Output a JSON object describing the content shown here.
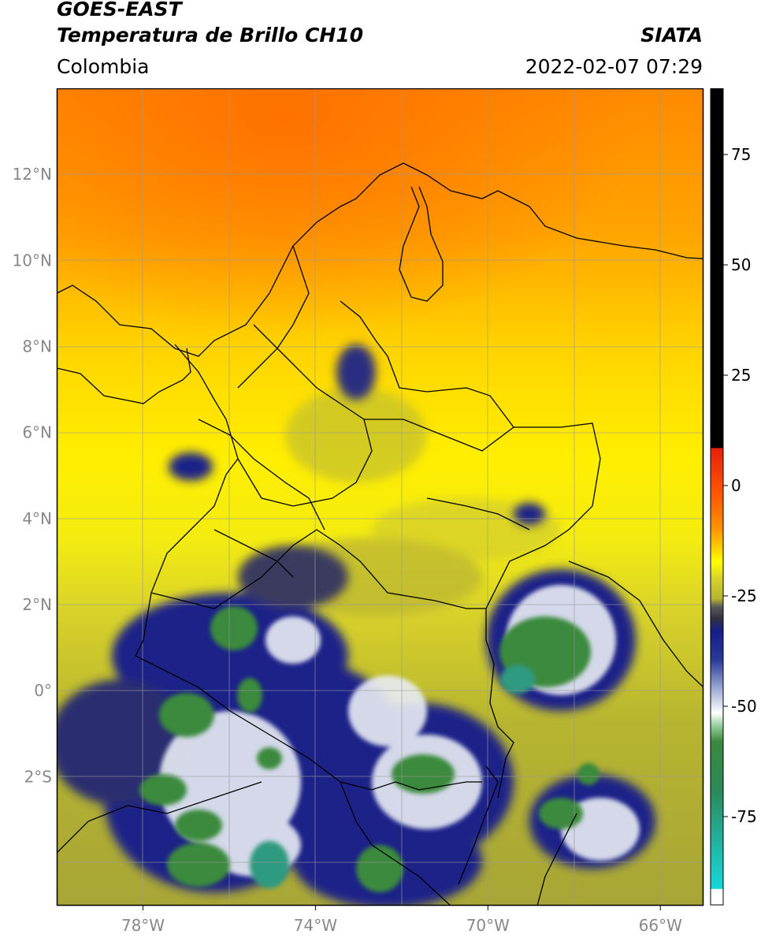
{
  "header": {
    "title_line1": "GOES-EAST",
    "title_line2": "Temperatura de Brillo CH10",
    "region": "Colombia",
    "agency": "SIATA",
    "datetime": "2022-02-07 07:29"
  },
  "map": {
    "lon_range": [
      -80,
      -65
    ],
    "lat_range": [
      -5,
      14
    ],
    "lon_ticks": [
      {
        "value": -78,
        "label": "78°W"
      },
      {
        "value": -74,
        "label": "74°W"
      },
      {
        "value": -70,
        "label": "70°W"
      },
      {
        "value": -66,
        "label": "66°W"
      }
    ],
    "lat_ticks": [
      {
        "value": 12,
        "label": "12°N"
      },
      {
        "value": 10,
        "label": "10°N"
      },
      {
        "value": 8,
        "label": "8°N"
      },
      {
        "value": 6,
        "label": "6°N"
      },
      {
        "value": 4,
        "label": "4°N"
      },
      {
        "value": 2,
        "label": "2°N"
      },
      {
        "value": 0,
        "label": "0°"
      },
      {
        "value": -2,
        "label": "2°S"
      }
    ],
    "grid": true
  },
  "colorbar": {
    "range": [
      -95,
      90
    ],
    "ticks": [
      {
        "value": 75,
        "label": "75"
      },
      {
        "value": 50,
        "label": "50"
      },
      {
        "value": 25,
        "label": "25"
      },
      {
        "value": 0,
        "label": "0"
      },
      {
        "value": -25,
        "label": "-25"
      },
      {
        "value": -50,
        "label": "-50"
      },
      {
        "value": -75,
        "label": "-75"
      }
    ],
    "colors": {
      "black": "#000000",
      "red": "#e8200c",
      "orange": "#ff8a00",
      "yellow": "#ffff00",
      "olive": "#b6b430",
      "navy": "#141f8a",
      "white": "#ffffff",
      "green": "#3a8a3e",
      "cyan": "#14d8d8"
    }
  }
}
